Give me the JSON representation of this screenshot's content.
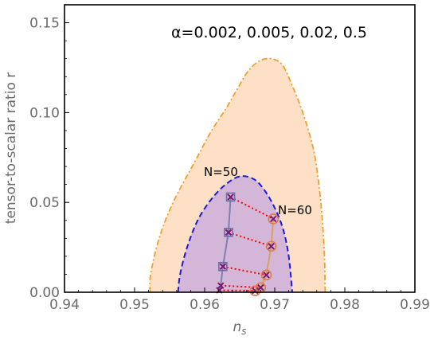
{
  "chart_data": {
    "type": "scatter",
    "xlabel": "n_s",
    "ylabel": "tensor-to-scalar ratio r",
    "xlim": [
      0.94,
      0.99
    ],
    "ylim": [
      0.0,
      0.16
    ],
    "x_ticks": [
      "0.94",
      "0.95",
      "0.96",
      "0.97",
      "0.98",
      "0.99"
    ],
    "y_ticks": [
      "0.00",
      "0.05",
      "0.10",
      "0.15"
    ],
    "annotation_alpha": "α=0.002, 0.005, 0.02, 0.5",
    "label_n50": "N=50",
    "label_n60": "N=60",
    "colors": {
      "outer_fill": "#fde0c6",
      "outer_stroke": "#f0a030",
      "inner_fill": "#d4b7d8",
      "inner_stroke": "#1a1adc",
      "n50_line": "#7f7fb0",
      "n60_line": "#d9a066",
      "connector": "#ff0000",
      "marker": "#7a1a6e"
    },
    "contours": {
      "outer_95": [
        [
          0.9522,
          0
        ],
        [
          0.9523,
          0.01
        ],
        [
          0.9535,
          0.03
        ],
        [
          0.9555,
          0.05
        ],
        [
          0.9585,
          0.072
        ],
        [
          0.961,
          0.09
        ],
        [
          0.963,
          0.102
        ],
        [
          0.9645,
          0.112
        ],
        [
          0.966,
          0.122
        ],
        [
          0.9675,
          0.128
        ],
        [
          0.9688,
          0.13
        ],
        [
          0.97,
          0.1295
        ],
        [
          0.9712,
          0.126
        ],
        [
          0.9725,
          0.115
        ],
        [
          0.974,
          0.1
        ],
        [
          0.9755,
          0.08
        ],
        [
          0.9763,
          0.06
        ],
        [
          0.9768,
          0.04
        ],
        [
          0.9771,
          0.02
        ],
        [
          0.9772,
          0
        ]
      ],
      "inner_68": [
        [
          0.9562,
          0
        ],
        [
          0.9565,
          0.01
        ],
        [
          0.9575,
          0.025
        ],
        [
          0.959,
          0.04
        ],
        [
          0.961,
          0.052
        ],
        [
          0.963,
          0.06
        ],
        [
          0.965,
          0.0645
        ],
        [
          0.967,
          0.063
        ],
        [
          0.9685,
          0.057
        ],
        [
          0.97,
          0.047
        ],
        [
          0.9712,
          0.035
        ],
        [
          0.972,
          0.02
        ],
        [
          0.9725,
          0
        ]
      ]
    },
    "series": [
      {
        "name": "N=50",
        "marker": "square",
        "points": [
          [
            0.9621,
            0.0011
          ],
          [
            0.9623,
            0.0037
          ],
          [
            0.9626,
            0.0143
          ],
          [
            0.9634,
            0.0333
          ],
          [
            0.9637,
            0.053
          ]
        ]
      },
      {
        "name": "N=60",
        "marker": "circle",
        "points": [
          [
            0.9672,
            0.0008
          ],
          [
            0.968,
            0.0026
          ],
          [
            0.9688,
            0.0096
          ],
          [
            0.9695,
            0.0256
          ],
          [
            0.9698,
            0.0408
          ]
        ]
      }
    ]
  }
}
